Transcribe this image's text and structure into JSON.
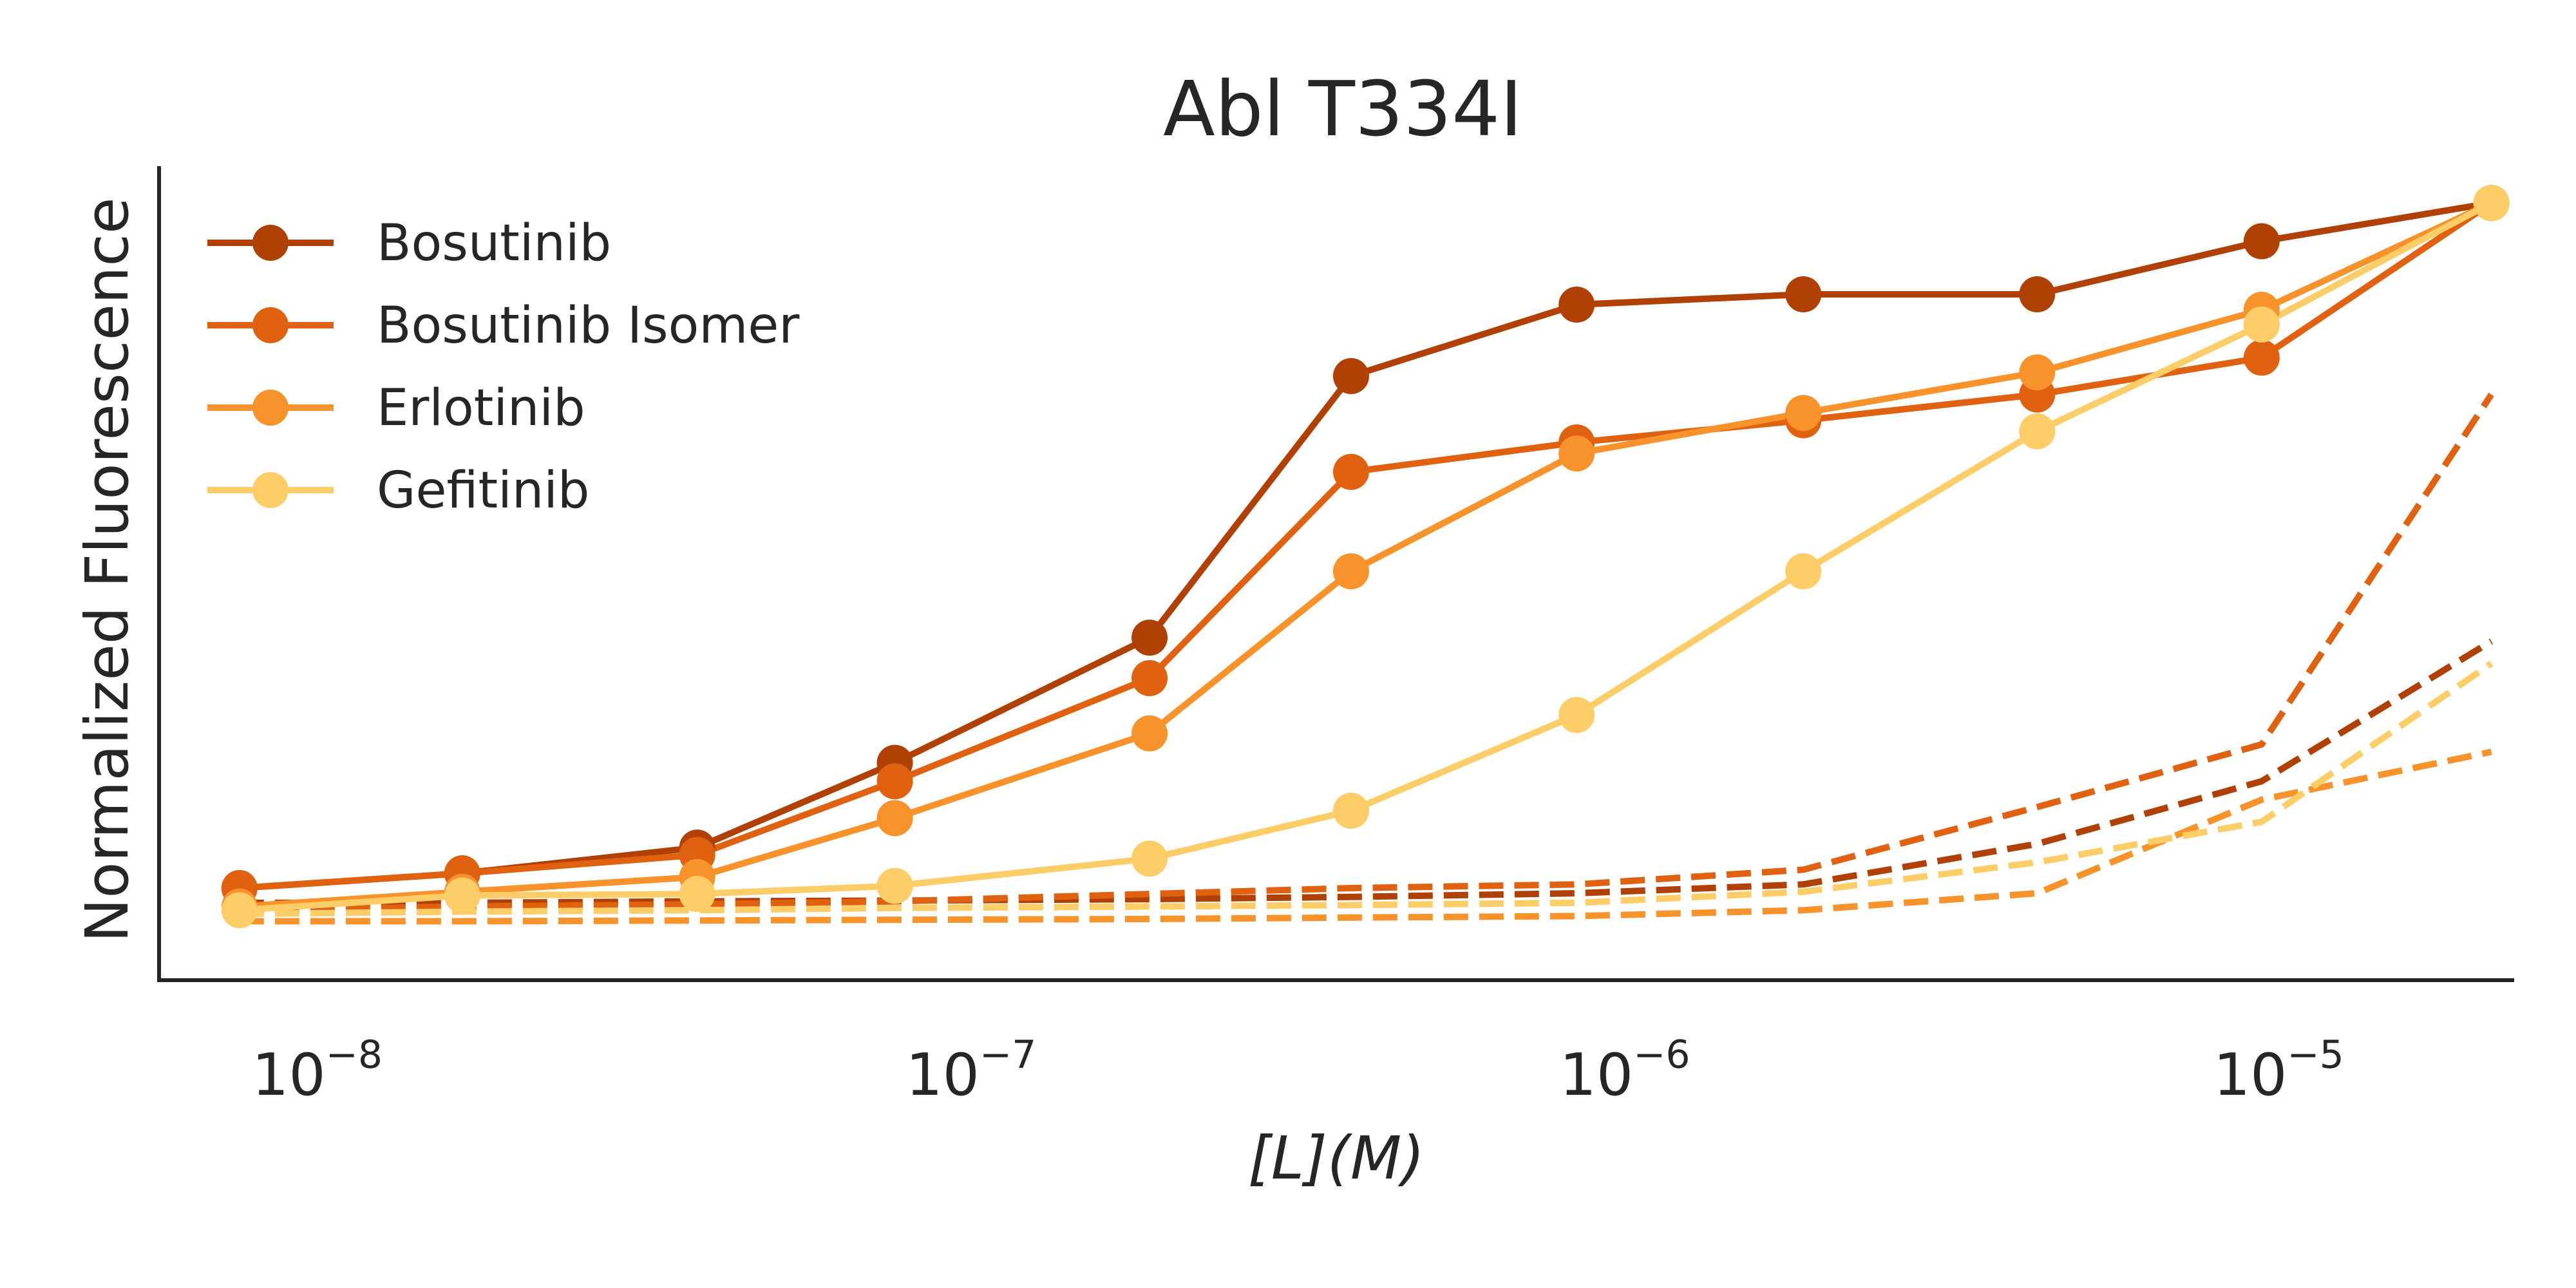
{
  "chart_data": {
    "type": "line",
    "title": "Abl T334I",
    "xlabel": "[L](M)",
    "ylabel": "Normalized Fluorescence",
    "xscale": "log",
    "xlim": [
      5.5e-09,
      2.2e-05
    ],
    "ylim": [
      -0.055,
      1.05
    ],
    "xticks": [
      {
        "value": 1e-08,
        "base": "10",
        "exp": "−8"
      },
      {
        "value": 1e-07,
        "base": "10",
        "exp": "−7"
      },
      {
        "value": 1e-06,
        "base": "10",
        "exp": "−6"
      },
      {
        "value": 1e-05,
        "base": "10",
        "exp": "−5"
      }
    ],
    "yticks_shown": false,
    "grid": false,
    "legend_position": "upper-left",
    "x": [
      7.3e-09,
      1.6e-08,
      3.66e-08,
      7.34e-08,
      1.8e-07,
      3.66e-07,
      8.1e-07,
      1.8e-06,
      4.1e-06,
      9.04e-06,
      2.03e-05
    ],
    "series": [
      {
        "name": "Bosutinib",
        "color": "#b14004",
        "values": [
          0.07,
          0.09,
          0.125,
          0.24,
          0.41,
          0.765,
          0.862,
          0.876,
          0.876,
          0.948,
          1.0
        ]
      },
      {
        "name": "Bosutinib Isomer",
        "color": "#e0610f",
        "values": [
          0.07,
          0.09,
          0.115,
          0.215,
          0.355,
          0.635,
          0.675,
          0.705,
          0.74,
          0.79,
          1.0
        ]
      },
      {
        "name": "Erlotinib",
        "color": "#f8922b",
        "values": [
          0.045,
          0.065,
          0.085,
          0.165,
          0.28,
          0.5,
          0.66,
          0.715,
          0.77,
          0.855,
          1.0
        ]
      },
      {
        "name": "Gefitinib",
        "color": "#fdcd68",
        "values": [
          0.04,
          0.06,
          0.062,
          0.073,
          0.11,
          0.175,
          0.305,
          0.5,
          0.69,
          0.835,
          1.0
        ]
      }
    ],
    "dashed_series": [
      {
        "color": "#b14004",
        "values": [
          0.05,
          0.05,
          0.052,
          0.053,
          0.055,
          0.058,
          0.063,
          0.075,
          0.13,
          0.215,
          0.405
        ]
      },
      {
        "color": "#e0610f",
        "values": [
          0.04,
          0.045,
          0.048,
          0.052,
          0.062,
          0.07,
          0.075,
          0.095,
          0.18,
          0.265,
          0.74
        ]
      },
      {
        "color": "#f8922b",
        "values": [
          0.025,
          0.025,
          0.026,
          0.027,
          0.028,
          0.03,
          0.032,
          0.04,
          0.063,
          0.19,
          0.255
        ]
      },
      {
        "color": "#fdcd68",
        "values": [
          0.035,
          0.038,
          0.04,
          0.043,
          0.045,
          0.047,
          0.05,
          0.065,
          0.105,
          0.16,
          0.375
        ]
      }
    ]
  }
}
